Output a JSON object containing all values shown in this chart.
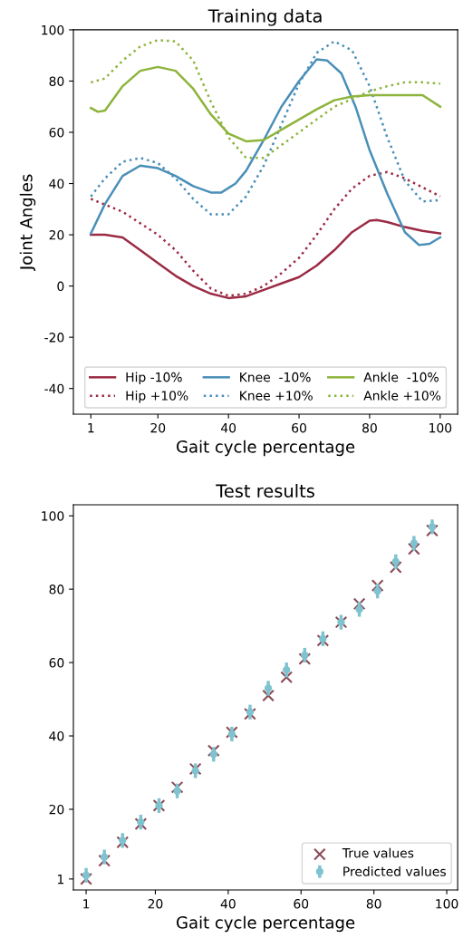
{
  "chart_data": [
    {
      "type": "line",
      "title": "Training data",
      "xlabel": "Gait cycle percentage",
      "ylabel": "Joint Angles",
      "xlim": [
        -3.95,
        104.95
      ],
      "ylim": [
        -50,
        100
      ],
      "xticks": [
        1,
        20,
        40,
        60,
        80,
        100
      ],
      "yticks": [
        -40,
        -20,
        0,
        20,
        40,
        60,
        80,
        100
      ],
      "grid": false,
      "legend": "bottom",
      "series": [
        {
          "name": "Hip -10%",
          "color": "#9b2b45",
          "line_style": "solid",
          "x": [
            1,
            5,
            10,
            15,
            20,
            25,
            30,
            35,
            40,
            45,
            50,
            55,
            60,
            65,
            70,
            75,
            80,
            82,
            85,
            90,
            95,
            100
          ],
          "values": [
            20,
            20,
            19,
            14,
            9,
            4,
            0,
            -3,
            -4.7,
            -4,
            -1.5,
            1,
            3.5,
            8,
            14,
            21,
            25.5,
            25.8,
            25,
            23,
            21.5,
            20.5
          ]
        },
        {
          "name": "Hip +10%",
          "color": "#9b2b45",
          "line_style": "dotted",
          "x": [
            1,
            10,
            20,
            25,
            30,
            35,
            40,
            45,
            50,
            55,
            60,
            65,
            70,
            75,
            80,
            85,
            90,
            95,
            100
          ],
          "values": [
            34,
            29,
            20,
            14,
            6,
            -1,
            -3.8,
            -3,
            0,
            5,
            11,
            20,
            30,
            38,
            43,
            44.5,
            42,
            38.5,
            35
          ]
        },
        {
          "name": "Knee  -10%",
          "color": "#4a8fb8",
          "line_style": "solid",
          "x": [
            1,
            5,
            10,
            15,
            20,
            25,
            30,
            35,
            38,
            42,
            45,
            50,
            55,
            60,
            65,
            68,
            72,
            76,
            80,
            85,
            90,
            94,
            97,
            100
          ],
          "values": [
            20.5,
            32,
            43,
            47,
            46,
            43,
            39,
            36.5,
            36.5,
            40,
            45,
            57,
            70,
            80,
            88.5,
            88,
            83,
            70,
            53,
            36,
            21,
            16,
            16.5,
            19
          ]
        },
        {
          "name": "Knee +10%",
          "color": "#4a8fb8",
          "line_style": "dotted",
          "x": [
            1,
            5,
            10,
            15,
            20,
            25,
            30,
            35,
            40,
            45,
            50,
            55,
            60,
            65,
            70,
            75,
            80,
            85,
            90,
            95,
            100
          ],
          "values": [
            35,
            42,
            48.5,
            50,
            48,
            42,
            34,
            28,
            28,
            35,
            47,
            63,
            79,
            91,
            95.5,
            92,
            78,
            58,
            41,
            33,
            33.5
          ]
        },
        {
          "name": "Ankle  -10%",
          "color": "#8db43c",
          "line_style": "solid",
          "x": [
            1,
            3,
            5,
            10,
            15,
            20,
            25,
            30,
            35,
            40,
            45,
            50,
            55,
            60,
            65,
            70,
            75,
            80,
            85,
            90,
            95,
            100
          ],
          "values": [
            69.5,
            68,
            68.5,
            78,
            84,
            85.5,
            84,
            77,
            67,
            59.5,
            56.5,
            57,
            61,
            65,
            69,
            72.5,
            74,
            74.5,
            74.5,
            74.5,
            74.5,
            70
          ]
        },
        {
          "name": "Ankle +10%",
          "color": "#8db43c",
          "line_style": "dotted",
          "x": [
            1,
            5,
            10,
            15,
            20,
            25,
            30,
            35,
            40,
            45,
            50,
            55,
            60,
            65,
            70,
            75,
            80,
            85,
            90,
            95,
            100
          ],
          "values": [
            79.5,
            81,
            88,
            93.5,
            96,
            95.5,
            88,
            72,
            58,
            50,
            50,
            55,
            60,
            65,
            70,
            73,
            76,
            78,
            79.5,
            79.5,
            79
          ]
        }
      ]
    },
    {
      "type": "scatter",
      "title": "Test results",
      "xlabel": "Gait cycle percentage",
      "xlim": [
        -2.5,
        103
      ],
      "ylim": [
        -2,
        103
      ],
      "xticks": [
        1,
        20,
        40,
        60,
        80,
        100
      ],
      "yticks": [
        1,
        20,
        40,
        60,
        80,
        100
      ],
      "grid": false,
      "legend": "bottom right",
      "x": [
        1,
        6,
        11,
        16,
        21,
        26,
        31,
        36,
        41,
        46,
        51,
        56,
        61,
        66,
        71,
        76,
        81,
        86,
        91,
        96
      ],
      "series": [
        {
          "name": "True values",
          "color": "#8b4a55",
          "marker": "cross",
          "values": [
            1,
            6,
            11,
            16,
            21,
            26,
            31,
            36,
            41,
            46,
            51,
            56,
            61,
            66,
            71,
            76,
            81,
            86,
            91,
            96
          ]
        },
        {
          "name": "Predicted values",
          "color": "#7fc3d0",
          "marker": "circle",
          "values": [
            2,
            7,
            11.5,
            16.5,
            21,
            25,
            30.5,
            35,
            40.5,
            46.5,
            53,
            58,
            62,
            66.5,
            71,
            74.5,
            79.5,
            87.5,
            92.5,
            97
          ],
          "errors": [
            2,
            2,
            2,
            2,
            2,
            2,
            2,
            2,
            2,
            2,
            2,
            2,
            2,
            2,
            2,
            2,
            2,
            2,
            2,
            2
          ]
        }
      ]
    }
  ]
}
